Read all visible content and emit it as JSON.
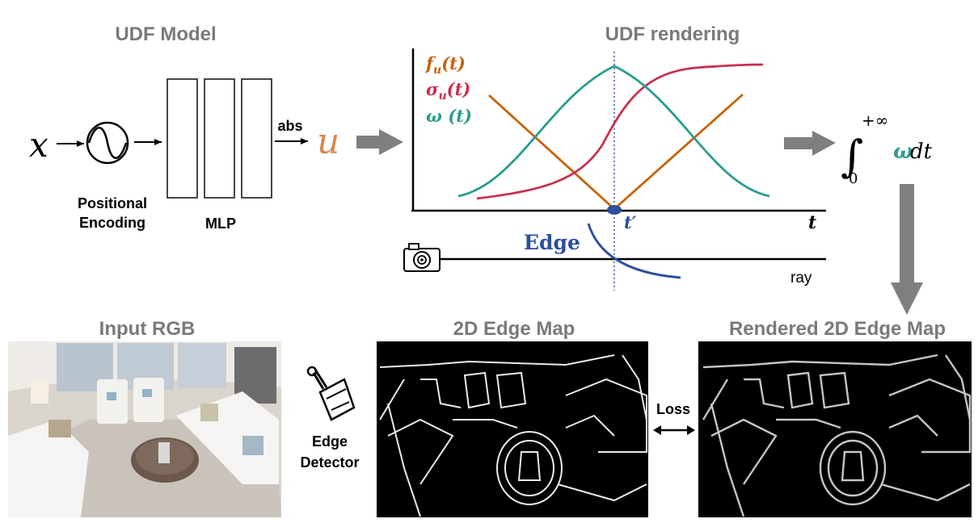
{
  "headings": {
    "udf_model": "UDF Model",
    "udf_rendering": "UDF rendering",
    "input_rgb": "Input RGB",
    "edge_map": "2D Edge Map",
    "rendered_edge_map": "Rendered 2D Edge Map"
  },
  "model": {
    "input_symbol": "x",
    "pe_line1": "Positional",
    "pe_line2": "Encoding",
    "mlp_label": "MLP",
    "abs_label": "abs",
    "output_symbol": "u"
  },
  "plot": {
    "legend": {
      "f": {
        "main": "f",
        "sub": "u",
        "arg": "(t)",
        "color": "#c8620a"
      },
      "sigma": {
        "main": "σ",
        "sub": "u",
        "arg": "(t)",
        "color": "#c9304f"
      },
      "omega": {
        "main": "ω",
        "sub": "",
        "arg": " (t)",
        "color": "#2a9d8f"
      }
    },
    "t_axis": "t",
    "t_prime": "t′",
    "edge_label": "Edge",
    "ray_label": "ray"
  },
  "integral": {
    "upper": "+∞",
    "lower": "0",
    "omega": "ω",
    "dt": " dt"
  },
  "bottom": {
    "detector_line1": "Edge",
    "detector_line2": "Detector",
    "loss_label": "Loss"
  },
  "colors": {
    "orange": "#c8620a",
    "crimson": "#c9304f",
    "teal": "#2a9d8f",
    "edge_blue": "#2d4f9c",
    "arrow_gray": "#7f7f7f",
    "heading_gray": "#7a7a7a"
  }
}
